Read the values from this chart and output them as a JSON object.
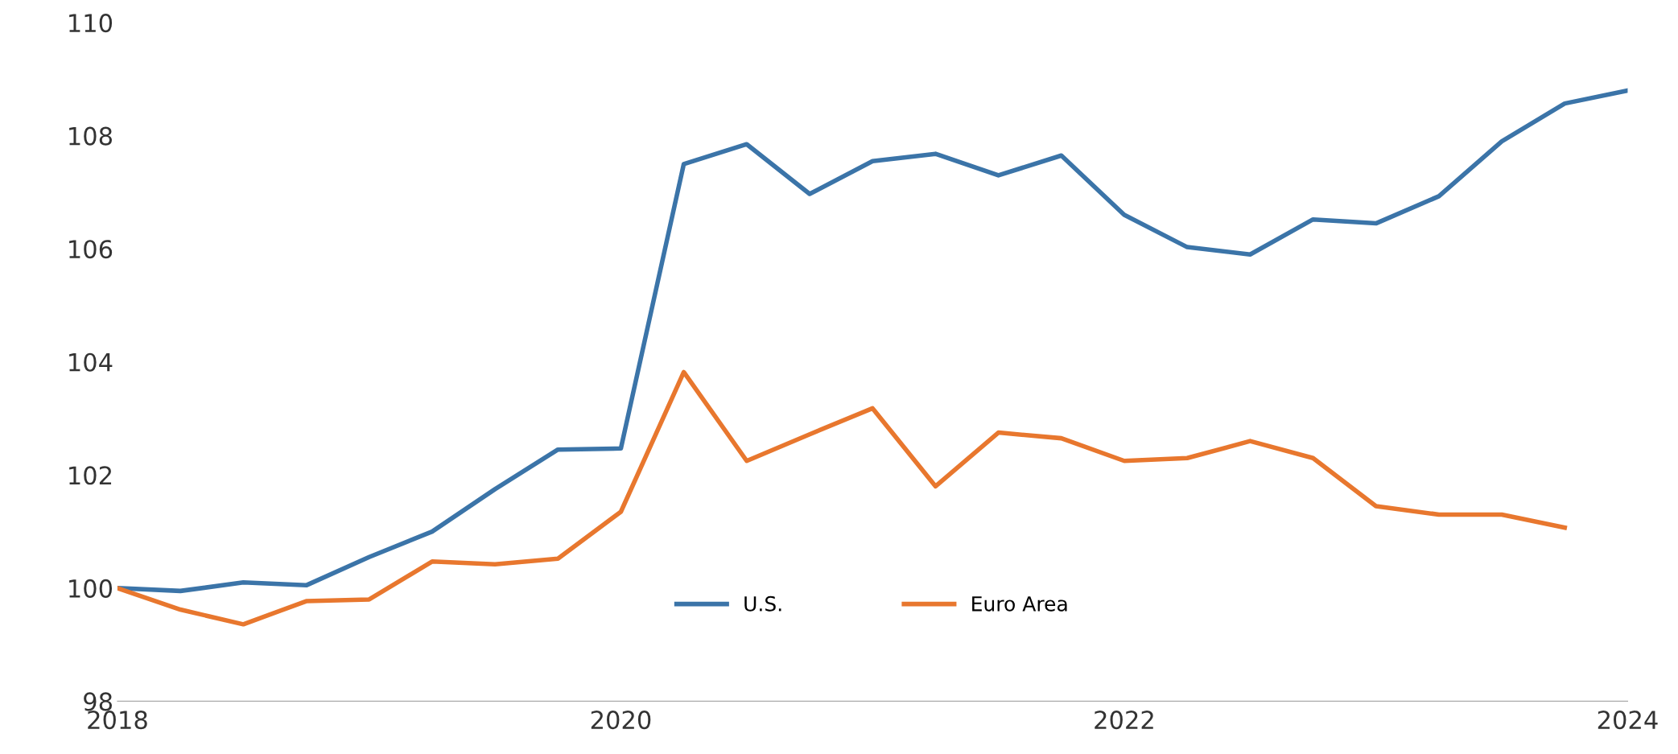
{
  "chart_data": {
    "type": "line",
    "x": [
      2018.0,
      2018.25,
      2018.5,
      2018.75,
      2019.0,
      2019.25,
      2019.5,
      2019.75,
      2020.0,
      2020.25,
      2020.5,
      2020.75,
      2021.0,
      2021.25,
      2021.5,
      2021.75,
      2022.0,
      2022.25,
      2022.5,
      2022.75,
      2023.0,
      2023.25,
      2023.5,
      2023.75,
      2024.0
    ],
    "series": [
      {
        "name": "U.S.",
        "color": "#3b74a8",
        "values": [
          100.0,
          99.95,
          100.1,
          100.05,
          100.55,
          101.0,
          101.75,
          102.45,
          102.47,
          107.5,
          107.85,
          106.97,
          107.55,
          107.68,
          107.3,
          107.65,
          106.6,
          106.03,
          105.9,
          106.52,
          106.45,
          106.93,
          107.9,
          108.57,
          108.8
        ]
      },
      {
        "name": "Euro Area",
        "color": "#e8772e",
        "values": [
          100.0,
          99.62,
          99.36,
          99.77,
          99.8,
          100.47,
          100.42,
          100.52,
          101.35,
          103.82,
          102.25,
          102.72,
          103.18,
          101.8,
          102.75,
          102.65,
          102.25,
          102.3,
          102.6,
          102.3,
          101.45,
          101.3,
          101.3,
          101.07,
          null
        ]
      }
    ],
    "xlim": [
      2018,
      2024
    ],
    "xticks": [
      2018,
      2020,
      2022,
      2024
    ],
    "ylim": [
      98,
      110
    ],
    "yticks": [
      98,
      100,
      102,
      104,
      106,
      108,
      110
    ],
    "grid": false,
    "legend": "bottom",
    "marker": "none",
    "line_style": "solid"
  }
}
